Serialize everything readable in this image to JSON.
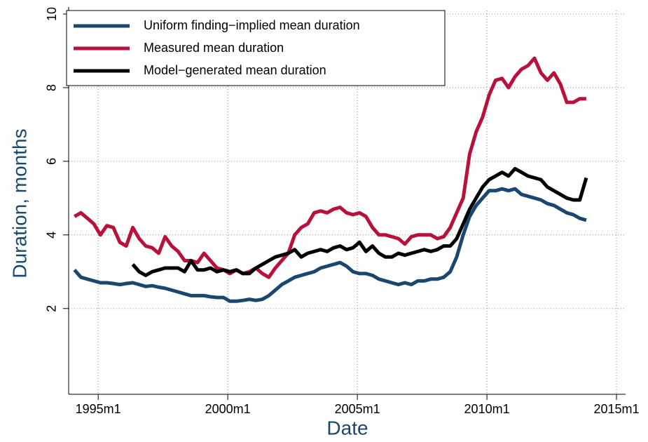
{
  "chart_data": {
    "type": "line",
    "xlabel": "Date",
    "ylabel": "Duration, months",
    "x": [
      "1994m2",
      "1994m5",
      "1994m8",
      "1994m11",
      "1995m2",
      "1995m5",
      "1995m8",
      "1995m11",
      "1996m2",
      "1996m5",
      "1996m8",
      "1996m11",
      "1997m2",
      "1997m5",
      "1997m8",
      "1997m11",
      "1998m2",
      "1998m5",
      "1998m8",
      "1998m11",
      "1999m2",
      "1999m5",
      "1999m8",
      "1999m11",
      "2000m2",
      "2000m5",
      "2000m8",
      "2000m11",
      "2001m2",
      "2001m5",
      "2001m8",
      "2001m11",
      "2002m2",
      "2002m5",
      "2002m8",
      "2002m11",
      "2003m2",
      "2003m5",
      "2003m8",
      "2003m11",
      "2004m2",
      "2004m5",
      "2004m8",
      "2004m11",
      "2005m2",
      "2005m5",
      "2005m8",
      "2005m11",
      "2006m2",
      "2006m5",
      "2006m8",
      "2006m11",
      "2007m2",
      "2007m5",
      "2007m8",
      "2007m11",
      "2008m2",
      "2008m5",
      "2008m8",
      "2008m11",
      "2009m2",
      "2009m5",
      "2009m8",
      "2009m11",
      "2010m2",
      "2010m5",
      "2010m8",
      "2010m11",
      "2011m2",
      "2011m5",
      "2011m8",
      "2011m11",
      "2012m2",
      "2012m5",
      "2012m8",
      "2012m11",
      "2013m2",
      "2013m5",
      "2013m8",
      "2013m11"
    ],
    "series": [
      {
        "name": "Uniform finding−implied mean duration",
        "color": "#1a476f",
        "values": [
          3.05,
          2.85,
          2.8,
          2.75,
          2.7,
          2.7,
          2.68,
          2.65,
          2.68,
          2.7,
          2.65,
          2.6,
          2.62,
          2.58,
          2.55,
          2.5,
          2.45,
          2.4,
          2.35,
          2.35,
          2.35,
          2.32,
          2.3,
          2.3,
          2.2,
          2.2,
          2.22,
          2.25,
          2.22,
          2.25,
          2.35,
          2.5,
          2.65,
          2.75,
          2.85,
          2.9,
          2.95,
          3.0,
          3.1,
          3.15,
          3.2,
          3.25,
          3.15,
          3.0,
          2.95,
          2.95,
          2.9,
          2.8,
          2.75,
          2.7,
          2.65,
          2.7,
          2.65,
          2.75,
          2.75,
          2.8,
          2.8,
          2.85,
          3.0,
          3.4,
          4.0,
          4.5,
          4.8,
          5.0,
          5.2,
          5.2,
          5.25,
          5.2,
          5.25,
          5.1,
          5.05,
          5.0,
          4.95,
          4.85,
          4.8,
          4.7,
          4.6,
          4.55,
          4.45,
          4.4
        ]
      },
      {
        "name": "Measured mean duration",
        "color": "#b8123c",
        "values": [
          4.5,
          4.6,
          4.45,
          4.3,
          4.0,
          4.25,
          4.2,
          3.8,
          3.7,
          4.2,
          3.9,
          3.7,
          3.65,
          3.5,
          3.95,
          3.7,
          3.55,
          3.3,
          3.3,
          3.25,
          3.5,
          3.3,
          3.1,
          3.05,
          2.95,
          3.05,
          2.95,
          3.0,
          3.1,
          2.95,
          2.85,
          3.1,
          3.3,
          3.5,
          4.0,
          4.2,
          4.3,
          4.6,
          4.65,
          4.6,
          4.7,
          4.75,
          4.6,
          4.55,
          4.6,
          4.5,
          4.2,
          4.0,
          4.0,
          3.95,
          3.9,
          3.75,
          3.95,
          4.0,
          4.0,
          4.0,
          3.9,
          3.95,
          4.2,
          4.6,
          5.0,
          6.2,
          6.8,
          7.2,
          7.8,
          8.2,
          8.25,
          8.0,
          8.3,
          8.5,
          8.6,
          8.8,
          8.4,
          8.2,
          8.4,
          8.1,
          7.6,
          7.6,
          7.7,
          7.7
        ]
      },
      {
        "name": "Model−generated mean duration",
        "color": "#000000",
        "values": [
          null,
          null,
          null,
          null,
          null,
          null,
          null,
          null,
          null,
          3.2,
          3.0,
          2.9,
          3.0,
          3.05,
          3.1,
          3.1,
          3.1,
          3.0,
          3.3,
          3.05,
          3.05,
          3.1,
          3.0,
          3.05,
          3.0,
          3.05,
          2.95,
          2.95,
          3.1,
          3.2,
          3.3,
          3.4,
          3.45,
          3.5,
          3.6,
          3.4,
          3.5,
          3.55,
          3.6,
          3.55,
          3.65,
          3.7,
          3.6,
          3.65,
          3.8,
          3.55,
          3.7,
          3.5,
          3.4,
          3.4,
          3.5,
          3.45,
          3.5,
          3.55,
          3.6,
          3.55,
          3.6,
          3.7,
          3.7,
          3.9,
          4.3,
          4.7,
          5.0,
          5.3,
          5.5,
          5.6,
          5.7,
          5.6,
          5.8,
          5.7,
          5.6,
          5.55,
          5.5,
          5.3,
          5.2,
          5.1,
          5.0,
          4.95,
          4.95,
          5.55
        ]
      }
    ],
    "xlim": [
      1993.86,
      2015.35
    ],
    "xticks": [
      {
        "value": 1995,
        "label": "1995m1"
      },
      {
        "value": 2000,
        "label": "2000m1"
      },
      {
        "value": 2005,
        "label": "2005m1"
      },
      {
        "value": 2010,
        "label": "2010m1"
      },
      {
        "value": 2015,
        "label": "2015m1"
      }
    ],
    "ylim": [
      -0.33,
      10
    ],
    "yticks": [
      2,
      4,
      6,
      8,
      10
    ],
    "grid": true,
    "legend": "top-left"
  }
}
